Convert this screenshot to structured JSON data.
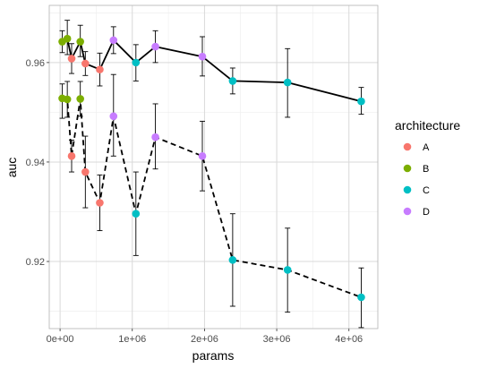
{
  "chart_data": {
    "type": "scatter",
    "xlabel": "params",
    "ylabel": "auc",
    "xlim": [
      -150000,
      4400000
    ],
    "ylim": [
      0.9065,
      0.9715
    ],
    "x_ticks": [
      {
        "value": 0,
        "label": "0e+00"
      },
      {
        "value": 1000000,
        "label": "1e+06"
      },
      {
        "value": 2000000,
        "label": "2e+06"
      },
      {
        "value": 3000000,
        "label": "3e+06"
      },
      {
        "value": 4000000,
        "label": "4e+06"
      }
    ],
    "x_minor_ticks": [
      500000,
      1500000,
      2500000,
      3500000
    ],
    "y_ticks": [
      {
        "value": 0.92,
        "label": "0.92"
      },
      {
        "value": 0.94,
        "label": "0.94"
      },
      {
        "value": 0.96,
        "label": "0.96"
      }
    ],
    "y_minor_ticks": [
      0.91,
      0.93,
      0.95,
      0.97
    ],
    "grid": true,
    "legend": {
      "title": "architecture",
      "position": "right",
      "entries": [
        {
          "label": "A",
          "color": "#F8766D"
        },
        {
          "label": "B",
          "color": "#7CAE00"
        },
        {
          "label": "C",
          "color": "#00BFC4"
        },
        {
          "label": "D",
          "color": "#C77CFF"
        }
      ]
    },
    "lines": [
      {
        "style": "solid",
        "points": [
          [
            30000,
            0.9642
          ],
          [
            100000,
            0.9648
          ],
          [
            160000,
            0.9608
          ],
          [
            280000,
            0.9642
          ],
          [
            350000,
            0.9598
          ],
          [
            550000,
            0.9586
          ],
          [
            740000,
            0.9645
          ],
          [
            1050000,
            0.96
          ],
          [
            1320000,
            0.9632
          ],
          [
            1970000,
            0.9612
          ],
          [
            2390000,
            0.9563
          ],
          [
            3150000,
            0.956
          ],
          [
            4170000,
            0.9522
          ]
        ]
      },
      {
        "style": "dashed",
        "points": [
          [
            30000,
            0.9528
          ],
          [
            100000,
            0.9526
          ],
          [
            160000,
            0.9412
          ],
          [
            280000,
            0.9527
          ],
          [
            350000,
            0.938
          ],
          [
            550000,
            0.9318
          ],
          [
            740000,
            0.9492
          ],
          [
            1050000,
            0.9296
          ],
          [
            1320000,
            0.945
          ],
          [
            1970000,
            0.9412
          ],
          [
            2390000,
            0.9203
          ],
          [
            3150000,
            0.9183
          ],
          [
            4170000,
            0.9128
          ]
        ]
      }
    ],
    "series": [
      {
        "name": "A",
        "color": "#F8766D",
        "points": [
          {
            "x": 160000,
            "y": 0.9608,
            "ymin": 0.9578,
            "ymax": 0.9638
          },
          {
            "x": 350000,
            "y": 0.9598,
            "ymin": 0.9574,
            "ymax": 0.9622
          },
          {
            "x": 550000,
            "y": 0.9586,
            "ymin": 0.9553,
            "ymax": 0.9619
          },
          {
            "x": 160000,
            "y": 0.9412,
            "ymin": 0.938,
            "ymax": 0.9444
          },
          {
            "x": 350000,
            "y": 0.938,
            "ymin": 0.9308,
            "ymax": 0.9452
          },
          {
            "x": 550000,
            "y": 0.9318,
            "ymin": 0.9262,
            "ymax": 0.9374
          }
        ]
      },
      {
        "name": "B",
        "color": "#7CAE00",
        "points": [
          {
            "x": 30000,
            "y": 0.9642,
            "ymin": 0.962,
            "ymax": 0.9664
          },
          {
            "x": 100000,
            "y": 0.9648,
            "ymin": 0.9616,
            "ymax": 0.9685
          },
          {
            "x": 280000,
            "y": 0.9642,
            "ymin": 0.9612,
            "ymax": 0.9675
          },
          {
            "x": 30000,
            "y": 0.9528,
            "ymin": 0.9488,
            "ymax": 0.9557
          },
          {
            "x": 100000,
            "y": 0.9526,
            "ymin": 0.949,
            "ymax": 0.9562
          },
          {
            "x": 280000,
            "y": 0.9527,
            "ymin": 0.9492,
            "ymax": 0.9562
          }
        ]
      },
      {
        "name": "C",
        "color": "#00BFC4",
        "points": [
          {
            "x": 1050000,
            "y": 0.96,
            "ymin": 0.9563,
            "ymax": 0.9636
          },
          {
            "x": 2390000,
            "y": 0.9563,
            "ymin": 0.9537,
            "ymax": 0.9589
          },
          {
            "x": 3150000,
            "y": 0.956,
            "ymin": 0.949,
            "ymax": 0.9628
          },
          {
            "x": 4170000,
            "y": 0.9522,
            "ymin": 0.9496,
            "ymax": 0.955
          },
          {
            "x": 1050000,
            "y": 0.9296,
            "ymin": 0.9212,
            "ymax": 0.938
          },
          {
            "x": 2390000,
            "y": 0.9203,
            "ymin": 0.911,
            "ymax": 0.9296
          },
          {
            "x": 3150000,
            "y": 0.9183,
            "ymin": 0.9098,
            "ymax": 0.9267
          },
          {
            "x": 4170000,
            "y": 0.9128,
            "ymin": 0.9067,
            "ymax": 0.9187
          }
        ]
      },
      {
        "name": "D",
        "color": "#C77CFF",
        "points": [
          {
            "x": 740000,
            "y": 0.9645,
            "ymin": 0.9618,
            "ymax": 0.9672
          },
          {
            "x": 1320000,
            "y": 0.9632,
            "ymin": 0.96,
            "ymax": 0.9664
          },
          {
            "x": 1970000,
            "y": 0.9612,
            "ymin": 0.9573,
            "ymax": 0.9652
          },
          {
            "x": 740000,
            "y": 0.9492,
            "ymin": 0.9412,
            "ymax": 0.9576
          },
          {
            "x": 1320000,
            "y": 0.945,
            "ymin": 0.9386,
            "ymax": 0.9517
          },
          {
            "x": 1970000,
            "y": 0.9412,
            "ymin": 0.9342,
            "ymax": 0.9482
          }
        ]
      }
    ]
  }
}
